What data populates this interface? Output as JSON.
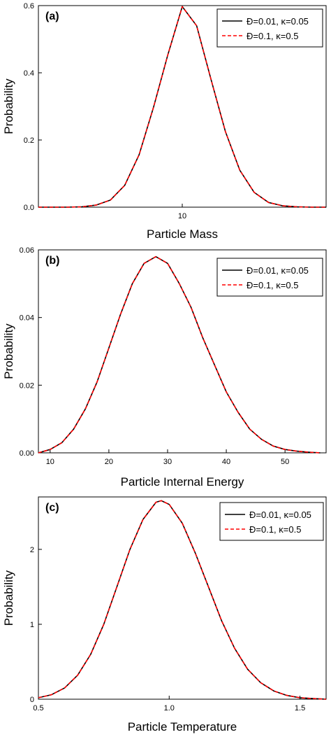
{
  "chart_data": [
    {
      "type": "line",
      "panel_label": "(a)",
      "xlabel": "Particle Mass",
      "ylabel": "Probability",
      "xlim": [
        0,
        20
      ],
      "ylim": [
        0,
        0.6
      ],
      "x_ticks": [
        10
      ],
      "y_ticks": [
        0.0,
        0.2,
        0.4,
        0.6
      ],
      "y_tick_labels": [
        "0.0",
        "0.2",
        "0.4",
        "0.6"
      ],
      "x_tick_labels": [
        "10"
      ],
      "legend_position": "top-right",
      "series": [
        {
          "name": "Đ=0.01, κ=0.05",
          "style": "solid",
          "color": "#000000",
          "x": [
            0,
            1,
            2,
            3,
            4,
            5,
            6,
            7,
            8,
            9,
            10,
            11,
            12,
            13,
            14,
            15,
            16,
            17,
            18,
            19,
            20
          ],
          "y": [
            0.0,
            0.0,
            0.0,
            0.001,
            0.006,
            0.021,
            0.065,
            0.156,
            0.297,
            0.454,
            0.597,
            0.54,
            0.38,
            0.225,
            0.11,
            0.044,
            0.014,
            0.004,
            0.001,
            0.0,
            0.0
          ]
        },
        {
          "name": "Đ=0.1, κ=0.5",
          "style": "dashed",
          "color": "#ff0000",
          "x": [
            0,
            1,
            2,
            3,
            4,
            5,
            6,
            7,
            8,
            9,
            10,
            11,
            12,
            13,
            14,
            15,
            16,
            17,
            18,
            19,
            20
          ],
          "y": [
            0.0,
            0.0,
            0.0,
            0.001,
            0.006,
            0.021,
            0.065,
            0.156,
            0.297,
            0.454,
            0.597,
            0.54,
            0.38,
            0.225,
            0.11,
            0.044,
            0.014,
            0.004,
            0.001,
            0.0,
            0.0
          ]
        }
      ]
    },
    {
      "type": "line",
      "panel_label": "(b)",
      "xlabel": "Particle Internal Energy",
      "ylabel": "Probability",
      "xlim": [
        8,
        57
      ],
      "ylim": [
        0,
        0.06
      ],
      "x_ticks": [
        10,
        20,
        30,
        40,
        50
      ],
      "x_tick_labels": [
        "10",
        "20",
        "30",
        "40",
        "50"
      ],
      "y_ticks": [
        0.0,
        0.02,
        0.04,
        0.06
      ],
      "y_tick_labels": [
        "0.00",
        "0.02",
        "0.04",
        "0.06"
      ],
      "legend_position": "top-right",
      "series": [
        {
          "name": "Đ=0.01, κ=0.05",
          "style": "solid",
          "color": "#000000",
          "x": [
            8,
            10,
            12,
            14,
            16,
            18,
            20,
            22,
            24,
            26,
            28,
            30,
            32,
            34,
            36,
            38,
            40,
            42,
            44,
            46,
            48,
            50,
            52,
            54,
            56
          ],
          "y": [
            0.0,
            0.001,
            0.003,
            0.007,
            0.013,
            0.021,
            0.031,
            0.041,
            0.05,
            0.056,
            0.058,
            0.056,
            0.05,
            0.043,
            0.034,
            0.026,
            0.018,
            0.012,
            0.007,
            0.004,
            0.002,
            0.001,
            0.0005,
            0.0002,
            0.0
          ]
        },
        {
          "name": "Đ=0.1, κ=0.5",
          "style": "dashed",
          "color": "#ff0000",
          "x": [
            8,
            10,
            12,
            14,
            16,
            18,
            20,
            22,
            24,
            26,
            28,
            30,
            32,
            34,
            36,
            38,
            40,
            42,
            44,
            46,
            48,
            50,
            52,
            54,
            56
          ],
          "y": [
            0.0,
            0.001,
            0.003,
            0.007,
            0.013,
            0.021,
            0.031,
            0.041,
            0.05,
            0.056,
            0.058,
            0.056,
            0.05,
            0.043,
            0.034,
            0.026,
            0.018,
            0.012,
            0.007,
            0.004,
            0.002,
            0.001,
            0.0005,
            0.0002,
            0.0
          ]
        }
      ]
    },
    {
      "type": "line",
      "panel_label": "(c)",
      "xlabel": "Particle Temperature",
      "ylabel": "Probability",
      "xlim": [
        0.5,
        1.6
      ],
      "ylim": [
        0,
        2.7
      ],
      "x_ticks": [
        0.5,
        1.0,
        1.5
      ],
      "x_tick_labels": [
        "0.5",
        "1.0",
        "1.5"
      ],
      "y_ticks": [
        0,
        1,
        2
      ],
      "y_tick_labels": [
        "0",
        "1",
        "2"
      ],
      "legend_position": "top-right",
      "series": [
        {
          "name": "Đ=0.01, κ=0.05",
          "style": "solid",
          "color": "#000000",
          "x": [
            0.5,
            0.55,
            0.6,
            0.65,
            0.7,
            0.75,
            0.8,
            0.85,
            0.9,
            0.95,
            0.97,
            1.0,
            1.05,
            1.1,
            1.15,
            1.2,
            1.25,
            1.3,
            1.35,
            1.4,
            1.45,
            1.5,
            1.55,
            1.6
          ],
          "y": [
            0.02,
            0.06,
            0.15,
            0.32,
            0.6,
            1.0,
            1.5,
            2.0,
            2.4,
            2.63,
            2.65,
            2.6,
            2.35,
            1.95,
            1.5,
            1.05,
            0.68,
            0.4,
            0.22,
            0.11,
            0.05,
            0.02,
            0.008,
            0.0
          ]
        },
        {
          "name": "Đ=0.1, κ=0.5",
          "style": "dashed",
          "color": "#ff0000",
          "x": [
            0.5,
            0.55,
            0.6,
            0.65,
            0.7,
            0.75,
            0.8,
            0.85,
            0.9,
            0.95,
            0.97,
            1.0,
            1.05,
            1.1,
            1.15,
            1.2,
            1.25,
            1.3,
            1.35,
            1.4,
            1.45,
            1.5,
            1.55,
            1.6
          ],
          "y": [
            0.02,
            0.06,
            0.15,
            0.32,
            0.6,
            1.0,
            1.5,
            2.0,
            2.4,
            2.63,
            2.65,
            2.6,
            2.35,
            1.95,
            1.5,
            1.05,
            0.68,
            0.4,
            0.22,
            0.11,
            0.05,
            0.02,
            0.008,
            0.0
          ]
        }
      ]
    }
  ]
}
